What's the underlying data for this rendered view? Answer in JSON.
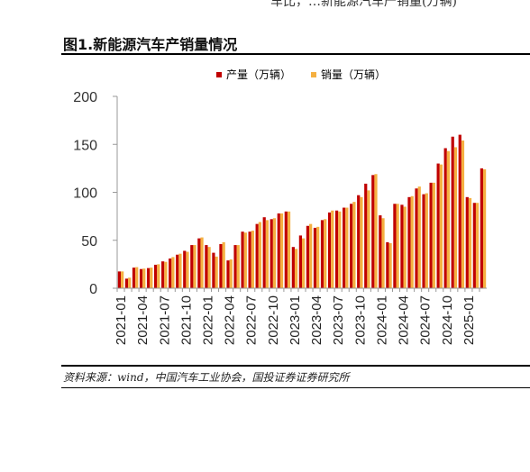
{
  "header_fragment": "车比，…新能源汽车产销量(万辆)",
  "figure_title": "图1.新能源汽车产销量情况",
  "source_note": "资料来源：wind，中国汽车工业协会，国投证券证券研究所",
  "colors": {
    "production": "#c00000",
    "sales": "#f5b041"
  },
  "chart_data": {
    "type": "bar",
    "title": "",
    "xlabel": "",
    "ylabel": "",
    "ylim": [
      0,
      200
    ],
    "yticks": [
      0,
      50,
      100,
      150,
      200
    ],
    "grid": false,
    "legend_position": "top",
    "x_tick_labels": [
      "2021-01",
      "2021-04",
      "2021-07",
      "2021-10",
      "2022-01",
      "2022-04",
      "2022-07",
      "2022-10",
      "2023-01",
      "2023-04",
      "2023-07",
      "2023-10",
      "2024-01",
      "2024-04",
      "2024-07",
      "2024-10",
      "2025-01"
    ],
    "categories": [
      "2021-01",
      "2021-02",
      "2021-03",
      "2021-04",
      "2021-05",
      "2021-06",
      "2021-07",
      "2021-08",
      "2021-09",
      "2021-10",
      "2021-11",
      "2021-12",
      "2022-01",
      "2022-02",
      "2022-03",
      "2022-04",
      "2022-05",
      "2022-06",
      "2022-07",
      "2022-08",
      "2022-09",
      "2022-10",
      "2022-11",
      "2022-12",
      "2023-01",
      "2023-02",
      "2023-03",
      "2023-04",
      "2023-05",
      "2023-06",
      "2023-07",
      "2023-08",
      "2023-09",
      "2023-10",
      "2023-11",
      "2023-12",
      "2024-01",
      "2024-02",
      "2024-03",
      "2024-04",
      "2024-05",
      "2024-06",
      "2024-07",
      "2024-08",
      "2024-09",
      "2024-10",
      "2024-11",
      "2024-12",
      "2025-01",
      "2025-02",
      "2025-03"
    ],
    "series": [
      {
        "name": "产量（万辆）",
        "values": [
          17.5,
          10,
          21.5,
          20,
          21,
          24.5,
          28,
          31,
          35,
          39,
          45,
          52,
          45,
          37,
          46,
          29,
          45,
          59,
          59,
          67,
          74,
          72,
          78,
          80,
          43,
          55,
          65,
          63,
          71,
          79,
          81,
          84,
          88,
          97,
          109,
          118,
          76,
          48,
          88,
          87,
          95,
          104,
          98,
          110,
          130,
          146,
          158,
          160,
          95,
          89,
          125
        ]
      },
      {
        "name": "销量（万辆）",
        "values": [
          17.5,
          11,
          22,
          20.5,
          21.5,
          25,
          27.5,
          32.5,
          36,
          38,
          45,
          53,
          43,
          33,
          48,
          30,
          45,
          58,
          60,
          69,
          71,
          73,
          78,
          80,
          41,
          52,
          67,
          64,
          72,
          81,
          80,
          84,
          90,
          95,
          102,
          119,
          73,
          47,
          88,
          85,
          96,
          106,
          99,
          110,
          129,
          143,
          147,
          154,
          94,
          89,
          124
        ]
      }
    ]
  }
}
